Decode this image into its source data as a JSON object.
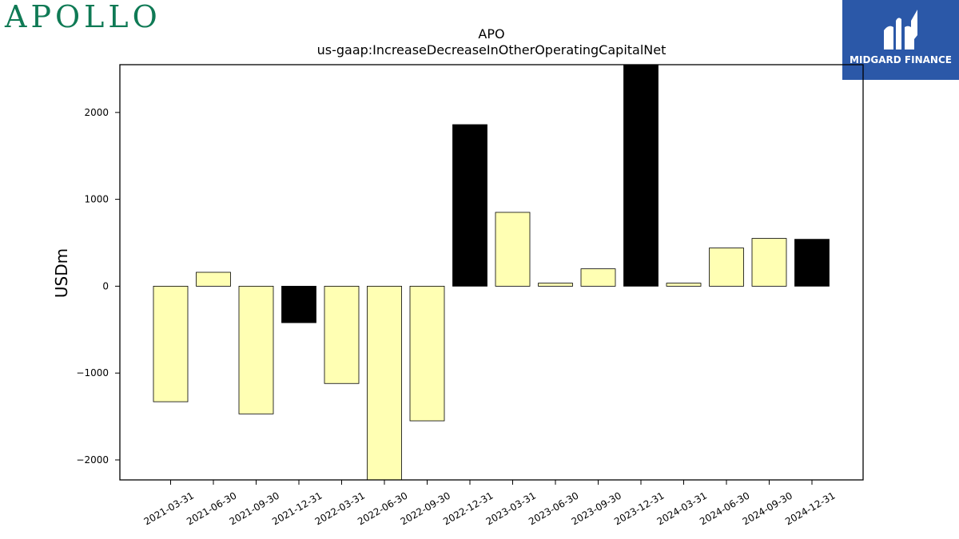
{
  "branding": {
    "left_logo_text": "APOLLO",
    "right_logo_text": "MIDGARD FINANCE",
    "right_logo_bg": "#2b58a8",
    "left_logo_color": "#0f7a55"
  },
  "chart_data": {
    "type": "bar",
    "title": "APO",
    "subtitle": "us-gaap:IncreaseDecreaseInOtherOperatingCapitalNet",
    "xlabel": "",
    "ylabel": "USDm",
    "ylim": [
      -2230,
      2550
    ],
    "yticks": [
      -2000,
      -1000,
      0,
      1000,
      2000
    ],
    "ytick_labels": [
      "−2000",
      "−1000",
      "0",
      "1000",
      "2000"
    ],
    "grid": false,
    "categories": [
      "2021-03-31",
      "2021-06-30",
      "2021-09-30",
      "2021-12-31",
      "2022-03-31",
      "2022-06-30",
      "2022-09-30",
      "2022-12-31",
      "2023-03-31",
      "2023-06-30",
      "2023-09-30",
      "2023-12-31",
      "2024-03-31",
      "2024-06-30",
      "2024-09-30",
      "2024-12-31"
    ],
    "values": [
      -1330,
      160,
      -1470,
      -420,
      -1120,
      -2300,
      -1550,
      1860,
      850,
      35,
      200,
      2600,
      35,
      440,
      550,
      540
    ],
    "bar_colors": [
      "#ffffb3",
      "#ffffb3",
      "#ffffb3",
      "#000000",
      "#ffffb3",
      "#ffffb3",
      "#ffffb3",
      "#000000",
      "#ffffb3",
      "#ffffb3",
      "#ffffb3",
      "#000000",
      "#ffffb3",
      "#ffffb3",
      "#ffffb3",
      "#000000"
    ]
  }
}
